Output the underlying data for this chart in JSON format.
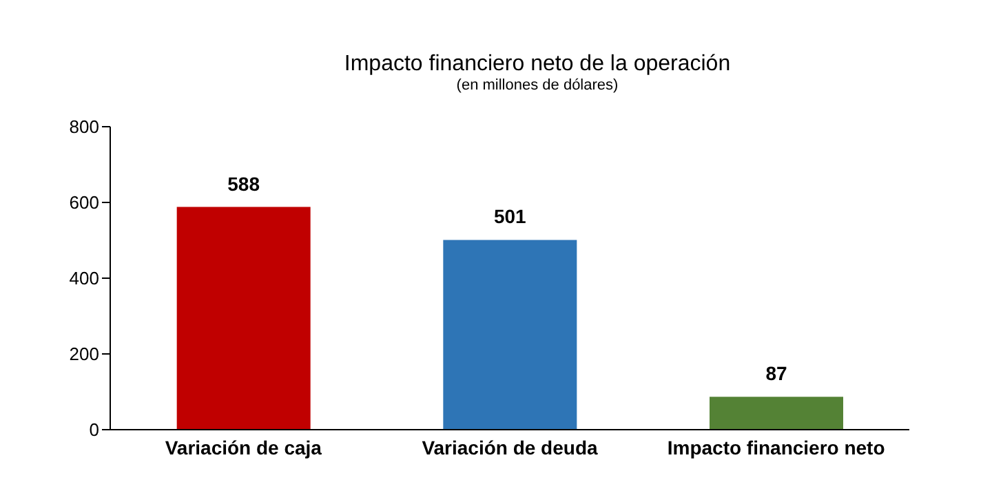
{
  "chart_data": {
    "type": "bar",
    "title": "Impacto financiero neto de la operación",
    "subtitle": "(en millones de dólares)",
    "categories": [
      "Variación de caja",
      "Variación de deuda",
      "Impacto financiero neto"
    ],
    "values": [
      588,
      501,
      87
    ],
    "colors": [
      "#c00000",
      "#2e75b6",
      "#548235"
    ],
    "ylim": [
      0,
      800
    ],
    "yticks": [
      0,
      200,
      400,
      600,
      800
    ],
    "grid": false,
    "data_labels": true
  }
}
